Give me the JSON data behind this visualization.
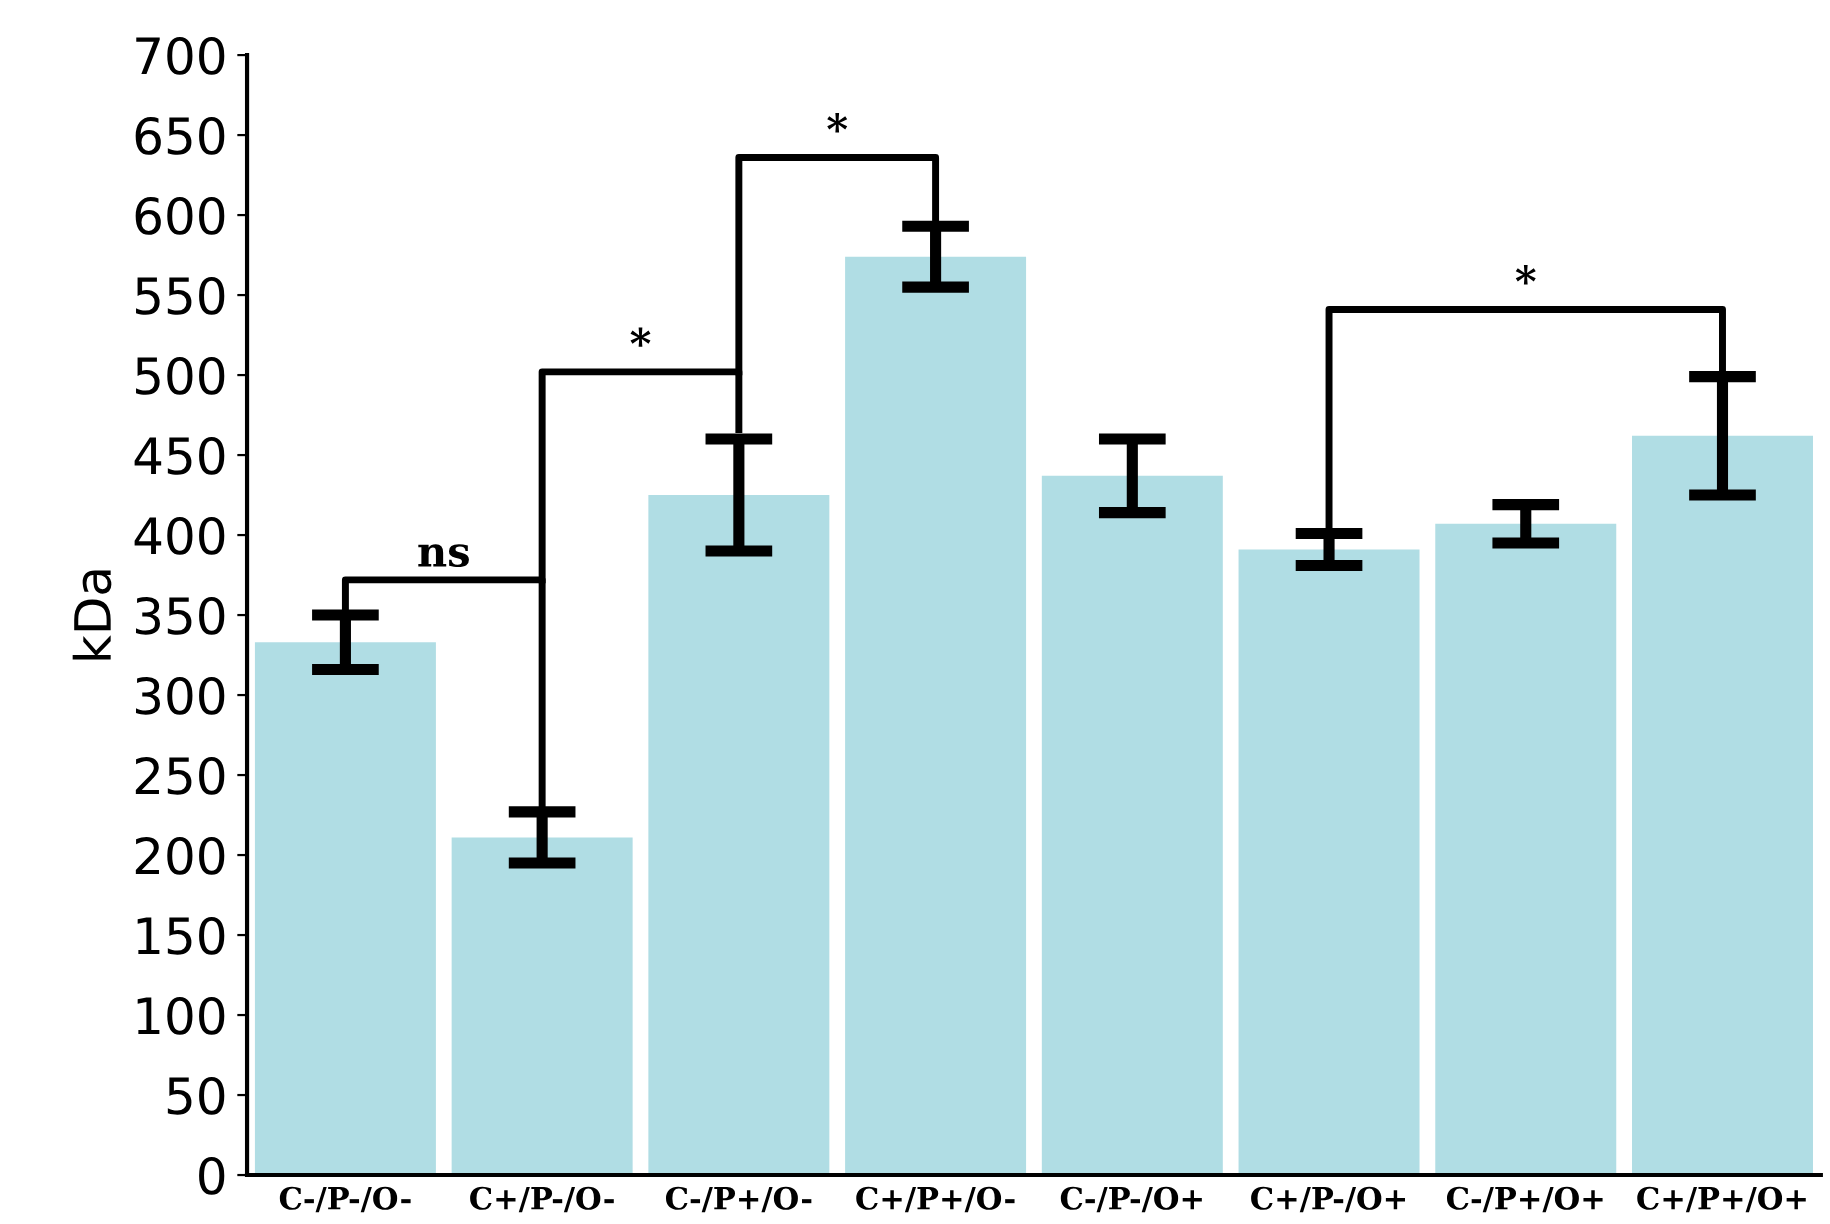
{
  "chart_data": {
    "type": "bar",
    "ylabel": "kDa",
    "categories": [
      "C-/P-/O-",
      "C+/P-/O-",
      "C-/P+/O-",
      "C+/P+/O-",
      "C-/P-/O+",
      "C+/P-/O+",
      "C-/P+/O+",
      "C+/P+/O+"
    ],
    "values": [
      333,
      211,
      425,
      574,
      437,
      391,
      407,
      462
    ],
    "errors": [
      17,
      16,
      35,
      19,
      23,
      10,
      12,
      37
    ],
    "color": "#b0dde4",
    "ylim": [
      0,
      700
    ],
    "yticks": [
      0,
      50,
      100,
      150,
      200,
      250,
      300,
      350,
      400,
      450,
      500,
      550,
      600,
      650,
      700
    ],
    "grid": false,
    "annotations": [
      "ns",
      "*",
      "*",
      "*"
    ]
  }
}
